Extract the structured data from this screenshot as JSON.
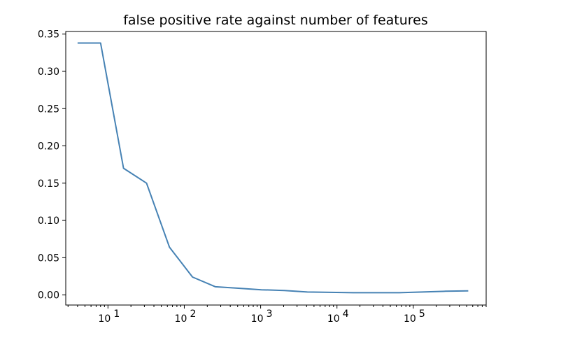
{
  "chart_data": {
    "type": "line",
    "title": "false positive rate against number of features",
    "xlabel": "",
    "ylabel": "",
    "x_scale": "log",
    "xlim": [
      2.8,
      900000
    ],
    "ylim": [
      -0.0135,
      0.3535
    ],
    "grid": false,
    "legend": "none",
    "line_color": "#4682b4",
    "x_ticks": [
      {
        "value": 10,
        "base": "10",
        "exp": "1"
      },
      {
        "value": 100,
        "base": "10",
        "exp": "2"
      },
      {
        "value": 1000,
        "base": "10",
        "exp": "3"
      },
      {
        "value": 10000,
        "base": "10",
        "exp": "4"
      },
      {
        "value": 100000,
        "base": "10",
        "exp": "5"
      }
    ],
    "y_ticks": [
      {
        "value": 0.0,
        "label": "0.00"
      },
      {
        "value": 0.05,
        "label": "0.05"
      },
      {
        "value": 0.1,
        "label": "0.10"
      },
      {
        "value": 0.15,
        "label": "0.15"
      },
      {
        "value": 0.2,
        "label": "0.20"
      },
      {
        "value": 0.25,
        "label": "0.25"
      },
      {
        "value": 0.3,
        "label": "0.30"
      },
      {
        "value": 0.35,
        "label": "0.35"
      }
    ],
    "series": [
      {
        "x": [
          4,
          8,
          16,
          32,
          64,
          128,
          256,
          512,
          1024,
          2048,
          4096,
          8192,
          16384,
          32768,
          65536,
          131072,
          262144,
          524288
        ],
        "y": [
          0.338,
          0.338,
          0.17,
          0.15,
          0.064,
          0.024,
          0.011,
          0.009,
          0.007,
          0.006,
          0.004,
          0.0035,
          0.003,
          0.003,
          0.003,
          0.004,
          0.005,
          0.0055
        ]
      }
    ]
  }
}
